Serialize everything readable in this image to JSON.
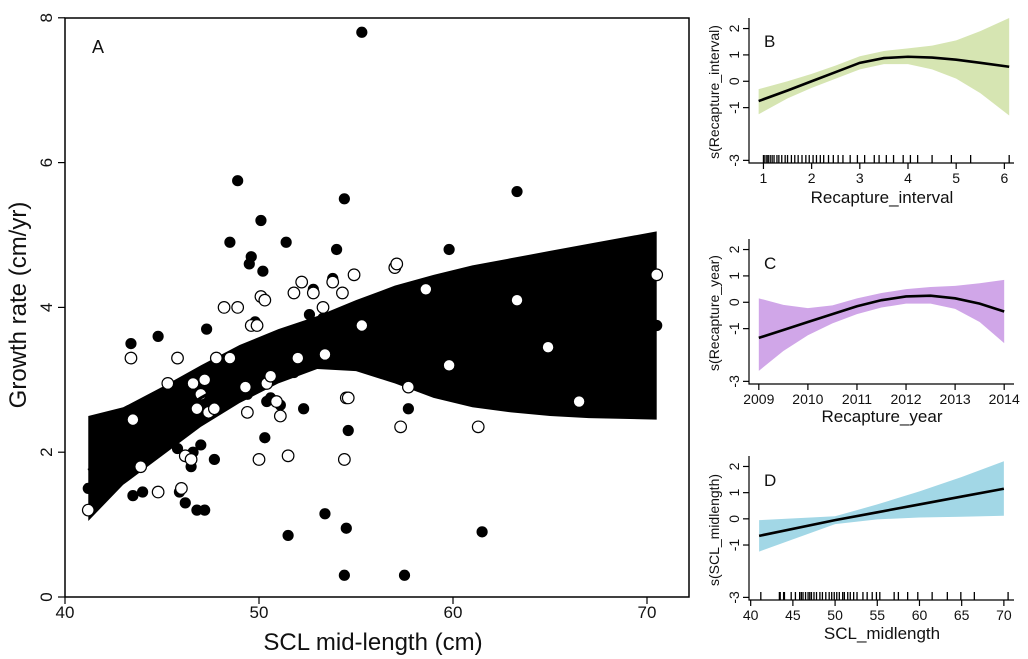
{
  "chart_data": [
    {
      "panel": "A",
      "type": "scatter",
      "xlabel": "SCL mid-length (cm)",
      "ylabel": "Growth rate (cm/yr)",
      "xlim": [
        40,
        72
      ],
      "ylim": [
        0,
        8
      ],
      "xticks": [
        40,
        50,
        60,
        70
      ],
      "yticks": [
        0,
        2,
        4,
        6,
        8
      ],
      "series": [
        {
          "marker": "filled-circle",
          "points": [
            [
              41.2,
              1.5
            ],
            [
              43.4,
              3.5
            ],
            [
              43.5,
              1.4
            ],
            [
              44.0,
              1.45
            ],
            [
              44.8,
              3.6
            ],
            [
              45.3,
              2.3
            ],
            [
              45.8,
              2.05
            ],
            [
              45.9,
              1.45
            ],
            [
              46.1,
              2.95
            ],
            [
              46.2,
              1.3
            ],
            [
              46.5,
              1.8
            ],
            [
              46.6,
              2.0
            ],
            [
              46.8,
              1.2
            ],
            [
              47.0,
              2.1
            ],
            [
              47.2,
              1.2
            ],
            [
              47.3,
              3.7
            ],
            [
              47.5,
              2.6
            ],
            [
              47.7,
              1.9
            ],
            [
              47.8,
              2.75
            ],
            [
              47.9,
              3.05
            ],
            [
              48.2,
              3.2
            ],
            [
              48.5,
              4.9
            ],
            [
              48.9,
              5.75
            ],
            [
              49.4,
              2.8
            ],
            [
              49.5,
              4.6
            ],
            [
              49.6,
              4.7
            ],
            [
              49.8,
              3.8
            ],
            [
              50.1,
              5.2
            ],
            [
              50.2,
              4.5
            ],
            [
              50.3,
              2.2
            ],
            [
              50.4,
              2.7
            ],
            [
              50.5,
              3.2
            ],
            [
              50.6,
              2.75
            ],
            [
              50.9,
              3.6
            ],
            [
              51.1,
              2.65
            ],
            [
              51.4,
              4.9
            ],
            [
              51.5,
              0.85
            ],
            [
              51.8,
              3.1
            ],
            [
              52.0,
              3.4
            ],
            [
              52.3,
              2.6
            ],
            [
              52.6,
              3.9
            ],
            [
              52.8,
              4.25
            ],
            [
              53.3,
              3.85
            ],
            [
              53.4,
              1.15
            ],
            [
              53.8,
              4.4
            ],
            [
              54.0,
              4.8
            ],
            [
              54.4,
              5.5
            ],
            [
              54.5,
              0.95
            ],
            [
              54.6,
              2.3
            ],
            [
              54.9,
              3.95
            ],
            [
              55.3,
              7.8
            ],
            [
              54.4,
              0.3
            ],
            [
              57.0,
              4.0
            ],
            [
              57.5,
              0.3
            ],
            [
              57.7,
              2.6
            ],
            [
              58.6,
              4.2
            ],
            [
              59.8,
              4.8
            ],
            [
              61.5,
              0.9
            ],
            [
              63.3,
              5.6
            ],
            [
              64.9,
              2.95
            ],
            [
              66.5,
              3.75
            ],
            [
              70.5,
              3.75
            ]
          ]
        },
        {
          "marker": "open-circle",
          "points": [
            [
              41.2,
              1.2
            ],
            [
              43.4,
              3.3
            ],
            [
              43.5,
              2.45
            ],
            [
              43.9,
              1.8
            ],
            [
              44.8,
              1.45
            ],
            [
              45.3,
              2.95
            ],
            [
              45.8,
              3.3
            ],
            [
              46.0,
              1.5
            ],
            [
              46.2,
              1.95
            ],
            [
              46.5,
              1.9
            ],
            [
              46.6,
              2.95
            ],
            [
              46.8,
              2.6
            ],
            [
              47.0,
              2.8
            ],
            [
              47.2,
              3.0
            ],
            [
              47.4,
              2.55
            ],
            [
              47.7,
              2.6
            ],
            [
              47.8,
              3.3
            ],
            [
              48.2,
              4.0
            ],
            [
              48.5,
              3.3
            ],
            [
              48.9,
              4.0
            ],
            [
              49.3,
              2.9
            ],
            [
              49.4,
              2.55
            ],
            [
              49.6,
              3.75
            ],
            [
              49.9,
              3.75
            ],
            [
              50.0,
              1.9
            ],
            [
              50.1,
              4.15
            ],
            [
              50.3,
              4.1
            ],
            [
              50.4,
              2.95
            ],
            [
              50.6,
              3.05
            ],
            [
              50.9,
              2.7
            ],
            [
              51.1,
              2.5
            ],
            [
              51.5,
              1.95
            ],
            [
              51.8,
              4.2
            ],
            [
              52.0,
              3.3
            ],
            [
              52.2,
              4.35
            ],
            [
              52.8,
              4.2
            ],
            [
              53.3,
              4.0
            ],
            [
              53.4,
              3.35
            ],
            [
              53.8,
              4.35
            ],
            [
              54.3,
              4.2
            ],
            [
              54.4,
              1.9
            ],
            [
              54.5,
              2.75
            ],
            [
              54.6,
              2.75
            ],
            [
              54.9,
              4.45
            ],
            [
              55.3,
              3.75
            ],
            [
              57.0,
              4.55
            ],
            [
              57.1,
              4.6
            ],
            [
              57.3,
              2.35
            ],
            [
              57.7,
              2.9
            ],
            [
              58.6,
              4.25
            ],
            [
              59.8,
              3.2
            ],
            [
              61.3,
              2.35
            ],
            [
              63.3,
              4.1
            ],
            [
              64.9,
              3.45
            ],
            [
              66.5,
              2.7
            ],
            [
              70.5,
              4.45
            ]
          ]
        }
      ],
      "fit": {
        "x": [
          41.2,
          43,
          45,
          47,
          49,
          51,
          53,
          55,
          57,
          59,
          61,
          63,
          65,
          67,
          70.5
        ],
        "y": [
          1.75,
          2.05,
          2.4,
          2.75,
          3.05,
          3.3,
          3.5,
          3.58,
          3.6,
          3.6,
          3.6,
          3.6,
          3.63,
          3.68,
          3.75
        ],
        "lower": [
          1.05,
          1.55,
          1.95,
          2.35,
          2.68,
          2.95,
          3.15,
          3.12,
          2.95,
          2.75,
          2.62,
          2.55,
          2.5,
          2.47,
          2.45
        ],
        "upper": [
          2.5,
          2.62,
          2.9,
          3.2,
          3.48,
          3.7,
          3.88,
          4.1,
          4.3,
          4.45,
          4.58,
          4.68,
          4.78,
          4.88,
          5.05
        ]
      },
      "band_color": "#c6c6c6"
    },
    {
      "panel": "B",
      "type": "line",
      "xlabel": "Recapture_interval",
      "ylabel": "s(Recapture_interval)",
      "xlim": [
        0.7,
        6.2
      ],
      "ylim": [
        -3.1,
        2.4
      ],
      "xticks": [
        1,
        2,
        3,
        4,
        5,
        6
      ],
      "yticks": [
        -3,
        -1,
        0,
        1,
        2
      ],
      "ytick_labels": [
        "-3",
        "-1",
        "0",
        "1",
        "2"
      ],
      "x": [
        0.9,
        1.5,
        2,
        2.5,
        3,
        3.5,
        4,
        4.5,
        5,
        5.5,
        6.1
      ],
      "y": [
        -0.75,
        -0.35,
        0,
        0.35,
        0.7,
        0.88,
        0.93,
        0.9,
        0.82,
        0.7,
        0.55
      ],
      "lower": [
        -1.25,
        -0.65,
        -0.25,
        0.1,
        0.45,
        0.65,
        0.65,
        0.45,
        0.1,
        -0.45,
        -1.3
      ],
      "upper": [
        -0.3,
        0.0,
        0.28,
        0.6,
        0.95,
        1.15,
        1.25,
        1.35,
        1.55,
        1.9,
        2.4
      ],
      "band_color": "#d6e5b2",
      "rug": [
        1.0,
        1.03,
        1.07,
        1.1,
        1.14,
        1.18,
        1.22,
        1.28,
        1.32,
        1.38,
        1.45,
        1.5,
        1.58,
        1.65,
        1.72,
        1.8,
        1.88,
        1.95,
        2.03,
        2.1,
        2.18,
        2.25,
        2.35,
        2.45,
        2.55,
        2.65,
        2.8,
        2.95,
        3.1,
        3.3,
        3.4,
        3.55,
        3.7,
        3.9,
        4.05,
        4.2,
        4.5,
        4.9,
        5.3,
        6.1
      ]
    },
    {
      "panel": "C",
      "type": "line",
      "xlabel": "Recapture_year",
      "ylabel": "s(Recapture_year)",
      "xlim": [
        2008.8,
        2014.2
      ],
      "ylim": [
        -3.1,
        2.4
      ],
      "xticks": [
        2009,
        2010,
        2011,
        2012,
        2013,
        2014
      ],
      "yticks": [
        -3,
        -1,
        0,
        1,
        2
      ],
      "ytick_labels": [
        "-3",
        "-1",
        "0",
        "1",
        "2"
      ],
      "x": [
        2009,
        2009.5,
        2010,
        2010.5,
        2011,
        2011.5,
        2012,
        2012.5,
        2013,
        2013.5,
        2014
      ],
      "y": [
        -1.35,
        -1.05,
        -0.75,
        -0.45,
        -0.15,
        0.08,
        0.22,
        0.25,
        0.15,
        -0.05,
        -0.35
      ],
      "lower": [
        -2.6,
        -1.85,
        -1.25,
        -0.8,
        -0.45,
        -0.2,
        -0.05,
        -0.05,
        -0.25,
        -0.75,
        -1.55
      ],
      "upper": [
        0.15,
        -0.1,
        -0.22,
        -0.12,
        0.15,
        0.35,
        0.5,
        0.58,
        0.62,
        0.72,
        0.85
      ],
      "band_color": "#d0a6e8"
    },
    {
      "panel": "D",
      "type": "line",
      "xlabel": "SCL_midlength",
      "ylabel": "s(SCL_midlength)",
      "xlim": [
        39.8,
        71.2
      ],
      "ylim": [
        -3.1,
        2.4
      ],
      "xticks": [
        40,
        45,
        50,
        55,
        60,
        65,
        70
      ],
      "yticks": [
        -3,
        -1,
        0,
        1,
        2
      ],
      "ytick_labels": [
        "-3",
        "-1",
        "0",
        "1",
        "2"
      ],
      "x": [
        41,
        50,
        55,
        60,
        65,
        70
      ],
      "y": [
        -0.65,
        -0.05,
        0.25,
        0.55,
        0.85,
        1.15
      ],
      "lower": [
        -1.25,
        -0.2,
        -0.02,
        0.05,
        0.08,
        0.12
      ],
      "upper": [
        -0.05,
        0.1,
        0.55,
        1.05,
        1.6,
        2.2
      ],
      "band_color": "#a2d7e6",
      "rug": [
        41.2,
        43.4,
        43.5,
        43.9,
        44.0,
        44.8,
        45.3,
        45.8,
        46.0,
        46.2,
        46.5,
        46.8,
        47.0,
        47.2,
        47.5,
        47.8,
        48.2,
        48.5,
        48.9,
        49.3,
        49.6,
        49.9,
        50.2,
        50.5,
        50.9,
        51.1,
        51.5,
        51.8,
        52.2,
        52.6,
        53.3,
        53.8,
        54.4,
        54.9,
        55.3,
        57.0,
        57.5,
        58.6,
        59.8,
        61.5,
        63.3,
        64.9,
        66.5,
        70.5
      ]
    }
  ]
}
